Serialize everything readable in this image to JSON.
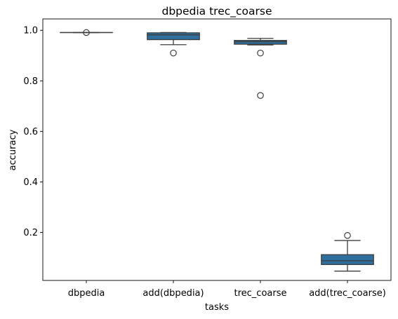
{
  "chart_data": {
    "type": "box",
    "title": "dbpedia trec_coarse",
    "xlabel": "tasks",
    "ylabel": "accuracy",
    "ylim": [
      0.01,
      1.045
    ],
    "yticks": [
      0.2,
      0.4,
      0.6,
      0.8,
      1.0
    ],
    "ytick_labels": [
      "0.2",
      "0.4",
      "0.6",
      "0.8",
      "1.0"
    ],
    "box_color": "#2e6f9e",
    "categories": [
      "dbpedia",
      "add(dbpedia)",
      "trec_coarse",
      "add(trec_coarse)"
    ],
    "boxes": [
      {
        "category": "dbpedia",
        "whisker_low": 0.991,
        "q1": 0.991,
        "median": 0.991,
        "q3": 0.991,
        "whisker_high": 0.991,
        "outliers": [
          0.991
        ]
      },
      {
        "category": "add(dbpedia)",
        "whisker_low": 0.943,
        "q1": 0.963,
        "median": 0.982,
        "q3": 0.99,
        "whisker_high": 0.991,
        "outliers": [
          0.91
        ]
      },
      {
        "category": "trec_coarse",
        "whisker_low": 0.942,
        "q1": 0.945,
        "median": 0.955,
        "q3": 0.96,
        "whisker_high": 0.968,
        "outliers": [
          0.91,
          0.742
        ]
      },
      {
        "category": "add(trec_coarse)",
        "whisker_low": 0.047,
        "q1": 0.073,
        "median": 0.088,
        "q3": 0.112,
        "whisker_high": 0.168,
        "outliers": [
          0.188
        ]
      }
    ]
  }
}
